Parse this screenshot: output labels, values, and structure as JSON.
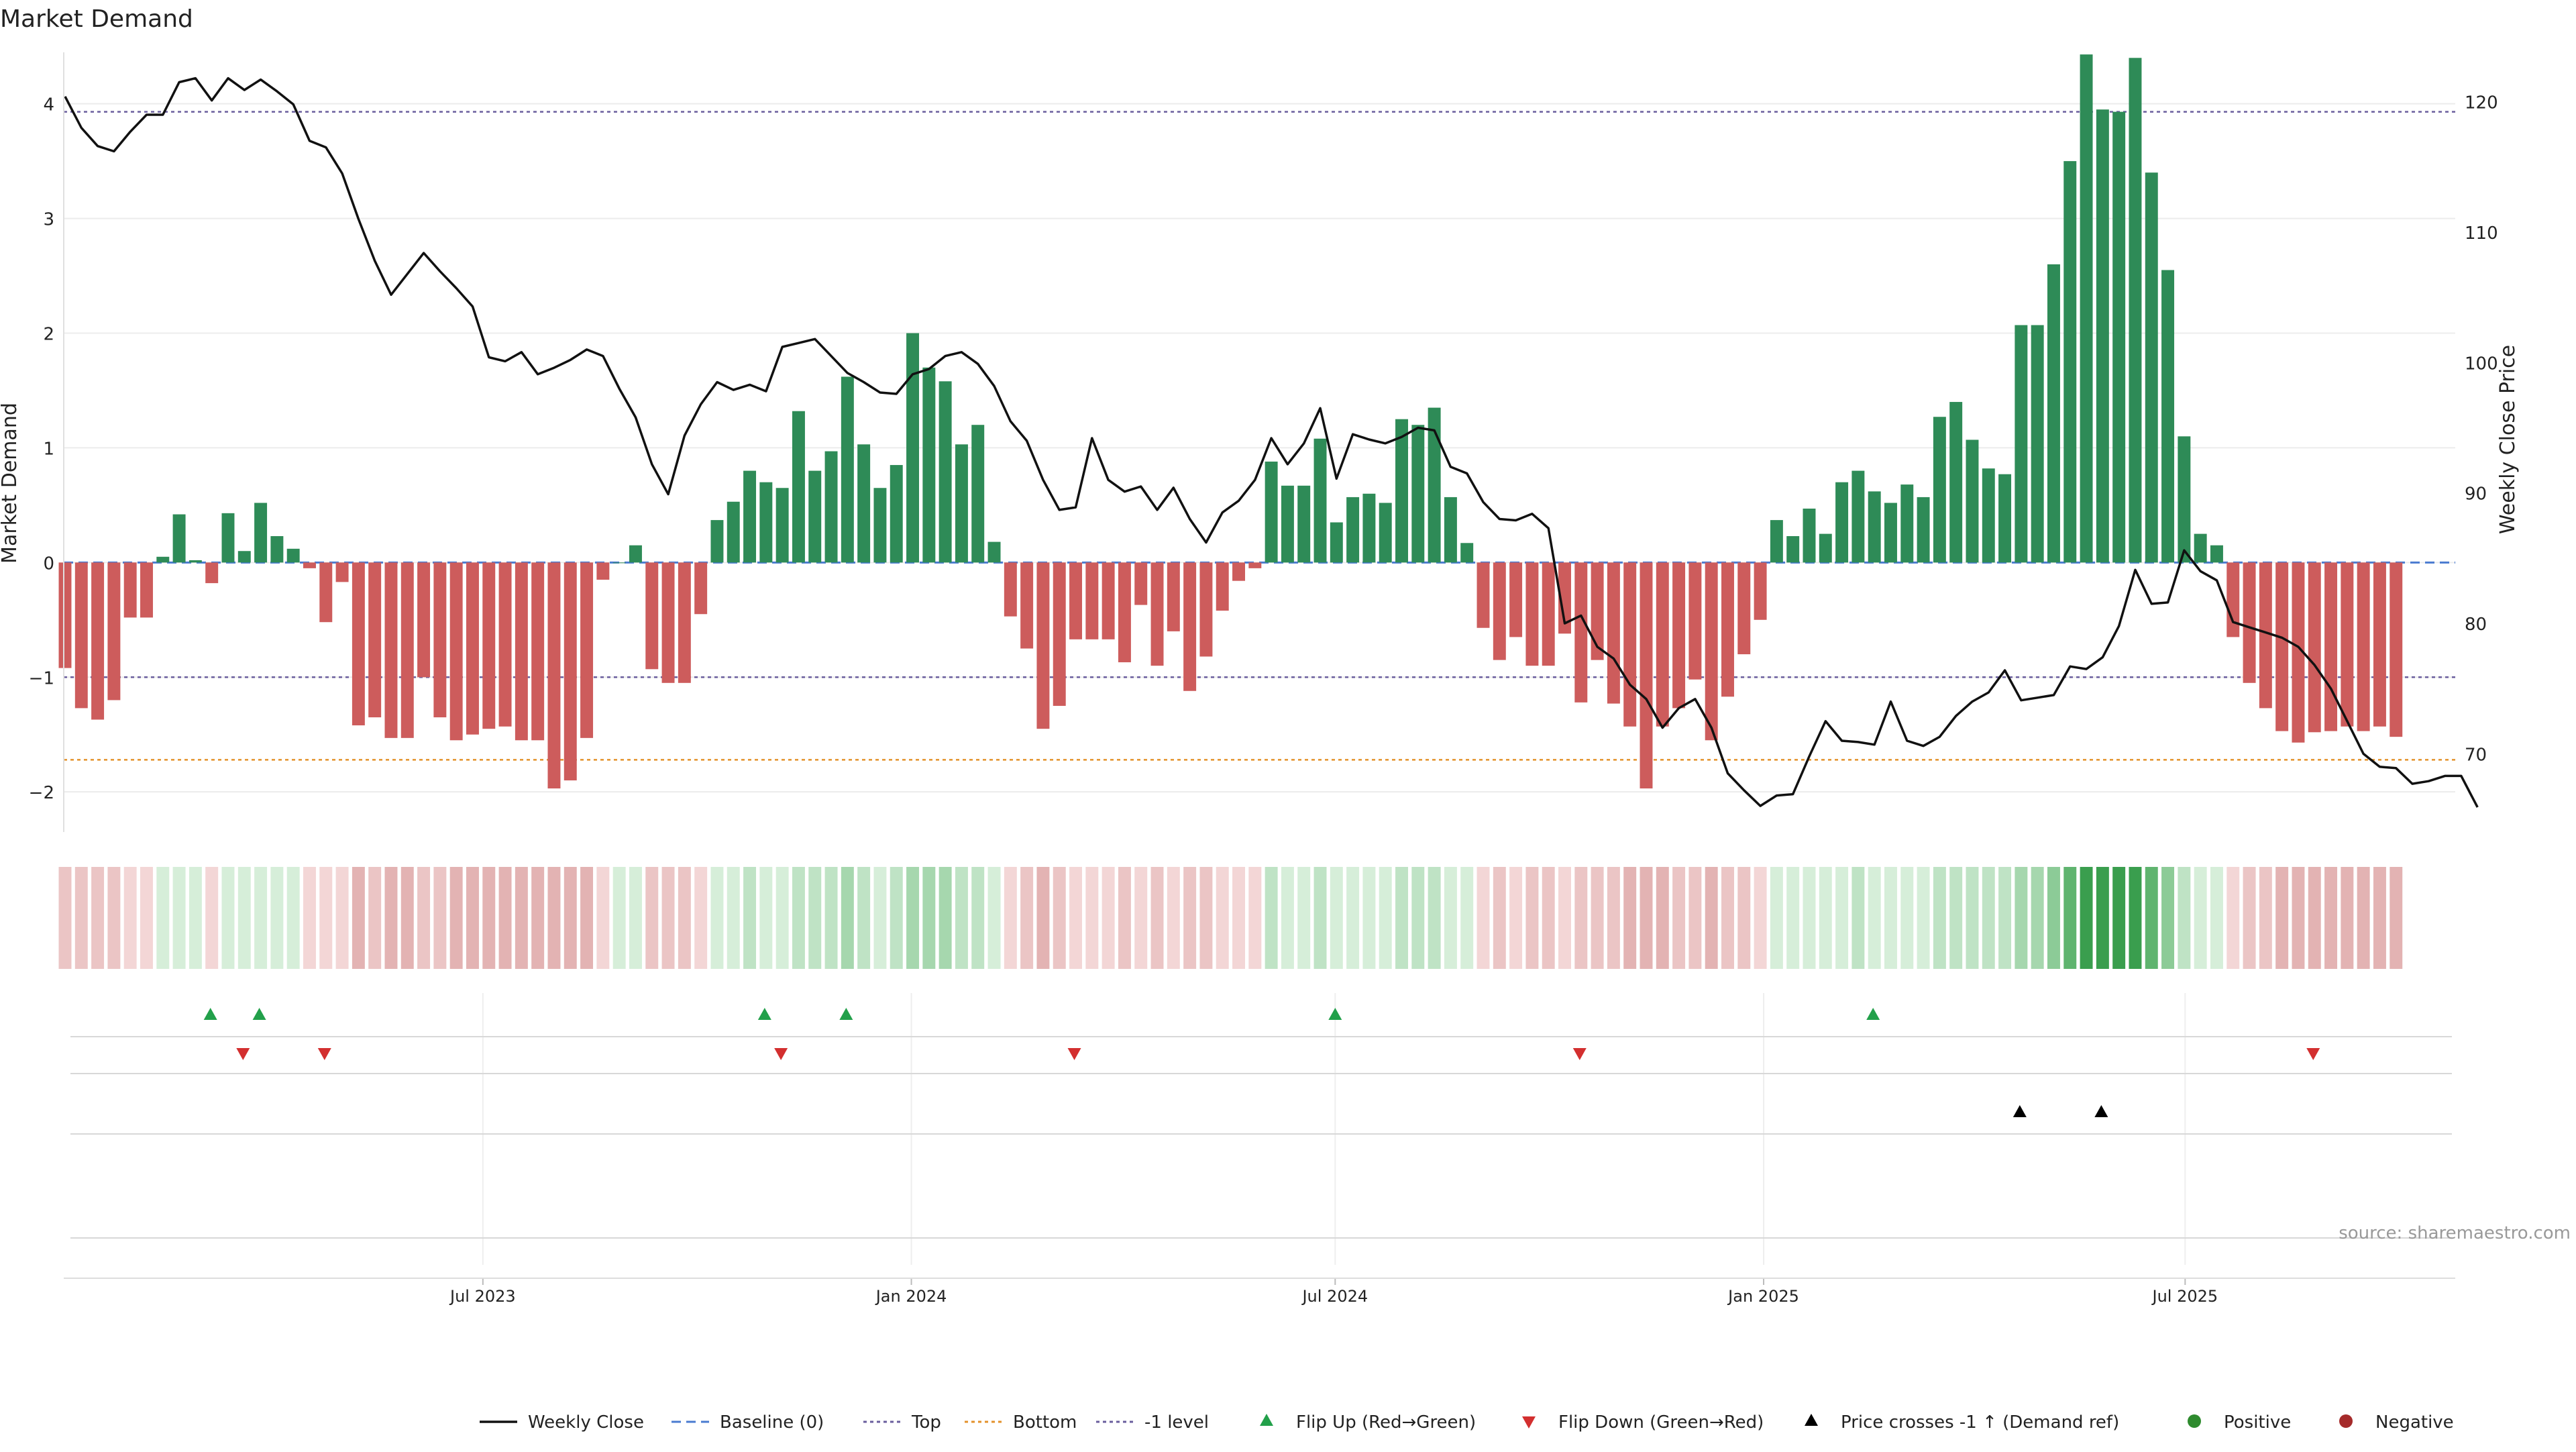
{
  "chart_data": {
    "type": "bar",
    "title": "Market Demand",
    "ylabel": "Market Demand",
    "y2label": "Weekly Close Price",
    "ylim": [
      -2.35,
      4.7
    ],
    "y2lim": [
      64,
      126
    ],
    "yticks": [
      -2,
      -1,
      0,
      1,
      2,
      3,
      4
    ],
    "y2ticks": [
      70,
      80,
      90,
      100,
      110,
      120
    ],
    "x_start": "2023-01-02",
    "x_end": "2025-10-25",
    "xticks": [
      {
        "date": "2023-07-01",
        "label": "Jul 2023"
      },
      {
        "date": "2024-01-01",
        "label": "Jan 2024"
      },
      {
        "date": "2024-07-01",
        "label": "Jul 2024"
      },
      {
        "date": "2025-01-01",
        "label": "Jan 2025"
      },
      {
        "date": "2025-07-01",
        "label": "Jul 2025"
      }
    ],
    "reference_lines": {
      "top": 3.93,
      "bottom": -1.72,
      "minus_one": -1.0,
      "baseline": 0
    },
    "series": [
      {
        "name": "Market Demand",
        "kind": "bar",
        "values": [
          -0.92,
          -1.27,
          -1.37,
          -1.2,
          -0.48,
          -0.48,
          0.05,
          0.42,
          0.02,
          -0.18,
          0.43,
          0.1,
          0.52,
          0.23,
          0.12,
          -0.05,
          -0.52,
          -0.17,
          -1.42,
          -1.35,
          -1.53,
          -1.53,
          -1.0,
          -1.35,
          -1.55,
          -1.5,
          -1.45,
          -1.43,
          -1.55,
          -1.55,
          -1.97,
          -1.9,
          -1.53,
          -0.15,
          0.0,
          0.15,
          -0.93,
          -1.05,
          -1.05,
          -0.45,
          0.37,
          0.53,
          0.8,
          0.7,
          0.65,
          1.32,
          0.8,
          0.97,
          1.62,
          1.03,
          0.65,
          0.85,
          2.0,
          1.7,
          1.58,
          1.03,
          1.2,
          0.18,
          -0.47,
          -0.75,
          -1.45,
          -1.25,
          -0.67,
          -0.67,
          -0.67,
          -0.87,
          -0.37,
          -0.9,
          -0.6,
          -1.12,
          -0.82,
          -0.42,
          -0.16,
          -0.05,
          0.88,
          0.67,
          0.67,
          1.08,
          0.35,
          0.57,
          0.6,
          0.52,
          1.25,
          1.2,
          1.35,
          0.57,
          0.17,
          -0.57,
          -0.85,
          -0.65,
          -0.9,
          -0.9,
          -0.62,
          -1.22,
          -0.85,
          -1.23,
          -1.43,
          -1.97,
          -1.43,
          -1.27,
          -1.02,
          -1.55,
          -1.17,
          -0.8,
          -0.5,
          0.37,
          0.23,
          0.47,
          0.25,
          0.7,
          0.8,
          0.62,
          0.52,
          0.68,
          0.57,
          1.27,
          1.4,
          1.07,
          0.82,
          0.77,
          2.07,
          2.07,
          2.6,
          3.5,
          4.43,
          3.95,
          3.93,
          4.4,
          3.4,
          2.55,
          1.1,
          0.25,
          0.15,
          -0.65,
          -1.05,
          -1.27,
          -1.47,
          -1.57,
          -1.48,
          -1.47,
          -1.43,
          -1.47,
          -1.43,
          -1.52
        ]
      },
      {
        "name": "Weekly Close",
        "kind": "line",
        "values": [
          120.4,
          118.0,
          116.6,
          116.2,
          117.7,
          119.0,
          119.0,
          121.5,
          121.8,
          120.1,
          121.8,
          120.9,
          121.7,
          120.8,
          119.8,
          117.0,
          116.5,
          114.5,
          111.0,
          107.8,
          105.2,
          106.8,
          108.4,
          107.0,
          105.7,
          104.3,
          100.4,
          100.1,
          100.8,
          99.1,
          99.6,
          100.2,
          101.0,
          100.5,
          98.0,
          95.8,
          92.2,
          89.9,
          94.4,
          96.8,
          98.5,
          97.9,
          98.3,
          97.8,
          101.2,
          101.5,
          101.8,
          100.5,
          99.2,
          98.5,
          97.7,
          97.6,
          99.1,
          99.5,
          100.5,
          100.8,
          99.9,
          98.2,
          95.5,
          94.0,
          91.0,
          88.7,
          88.9,
          94.2,
          91.0,
          90.1,
          90.5,
          88.7,
          90.4,
          88.0,
          86.2,
          88.5,
          89.4,
          91.0,
          94.2,
          92.2,
          93.8,
          96.5,
          91.1,
          94.5,
          94.1,
          93.8,
          94.3,
          95.0,
          94.8,
          92.0,
          91.5,
          89.3,
          88.0,
          87.9,
          88.4,
          87.3,
          80.0,
          80.6,
          78.2,
          77.3,
          75.3,
          74.2,
          72.0,
          73.5,
          74.2,
          72.0,
          68.5,
          67.2,
          66.0,
          66.8,
          66.9,
          69.8,
          72.5,
          71.0,
          70.9,
          70.7,
          74.0,
          71.0,
          70.6,
          71.3,
          72.9,
          74.0,
          74.7,
          76.4,
          74.1,
          74.3,
          74.5,
          76.7,
          76.5,
          77.4,
          79.8,
          84.1,
          81.5,
          81.6,
          85.6,
          84.0,
          83.3,
          80.1,
          79.7,
          79.3,
          78.9,
          78.2,
          76.8,
          75.0,
          72.5,
          70.0,
          69.0,
          68.9,
          67.7,
          67.9,
          68.3,
          68.3,
          65.9
        ]
      },
      {
        "name": "Flip Up (Red→Green)",
        "kind": "marker",
        "dates": [
          "2023-03-06",
          "2023-03-27",
          "2023-10-30",
          "2023-12-04",
          "2024-07-01",
          "2025-02-17"
        ]
      },
      {
        "name": "Flip Down (Green→Red)",
        "kind": "marker",
        "dates": [
          "2023-03-20",
          "2023-04-24",
          "2023-11-06",
          "2024-03-11",
          "2024-10-14",
          "2025-08-25"
        ]
      },
      {
        "name": "Price crosses -1 ↑ (Demand ref)",
        "kind": "marker",
        "dates": [
          "2025-04-21",
          "2025-05-26"
        ]
      }
    ],
    "heat_colors": {
      "green": [
        "#d6eed9",
        "#bfe3c5",
        "#a6d7ae",
        "#8ccb97",
        "#5fb46f",
        "#3a9e4e"
      ],
      "red": [
        "#f3d6d6",
        "#ebc5c5",
        "#e3b3b3"
      ]
    },
    "colors": {
      "positive_bar": "#2e8b57",
      "negative_bar": "#cd5c5c",
      "close": "#111111",
      "baseline": "#4a7bd0",
      "top_line": "#6a5e9e",
      "bottom_line": "#e3922b",
      "minus_one_line": "#6a5e9e",
      "flip_up": "#22a04a",
      "flip_down": "#d32f2f",
      "cross": "#000000",
      "positive_dot": "#2e8b2e",
      "negative_dot": "#a52a2a"
    },
    "legend": {
      "placement": "bottom",
      "items": [
        {
          "label": "Weekly Close",
          "kind": "line"
        },
        {
          "label": "Baseline (0)",
          "kind": "dash"
        },
        {
          "label": "Top",
          "kind": "dot-purple"
        },
        {
          "label": "Bottom",
          "kind": "dot-orange"
        },
        {
          "label": "-1 level",
          "kind": "dot-purple"
        },
        {
          "label": "Flip Up (Red→Green)",
          "kind": "tri-up-green"
        },
        {
          "label": "Flip Down (Green→Red)",
          "kind": "tri-down-red"
        },
        {
          "label": "Price crosses -1 ↑ (Demand ref)",
          "kind": "tri-up-black"
        },
        {
          "label": "Positive",
          "kind": "dot-green"
        },
        {
          "label": "Negative",
          "kind": "dot-red"
        }
      ]
    },
    "source": "source: sharemaestro.com"
  }
}
